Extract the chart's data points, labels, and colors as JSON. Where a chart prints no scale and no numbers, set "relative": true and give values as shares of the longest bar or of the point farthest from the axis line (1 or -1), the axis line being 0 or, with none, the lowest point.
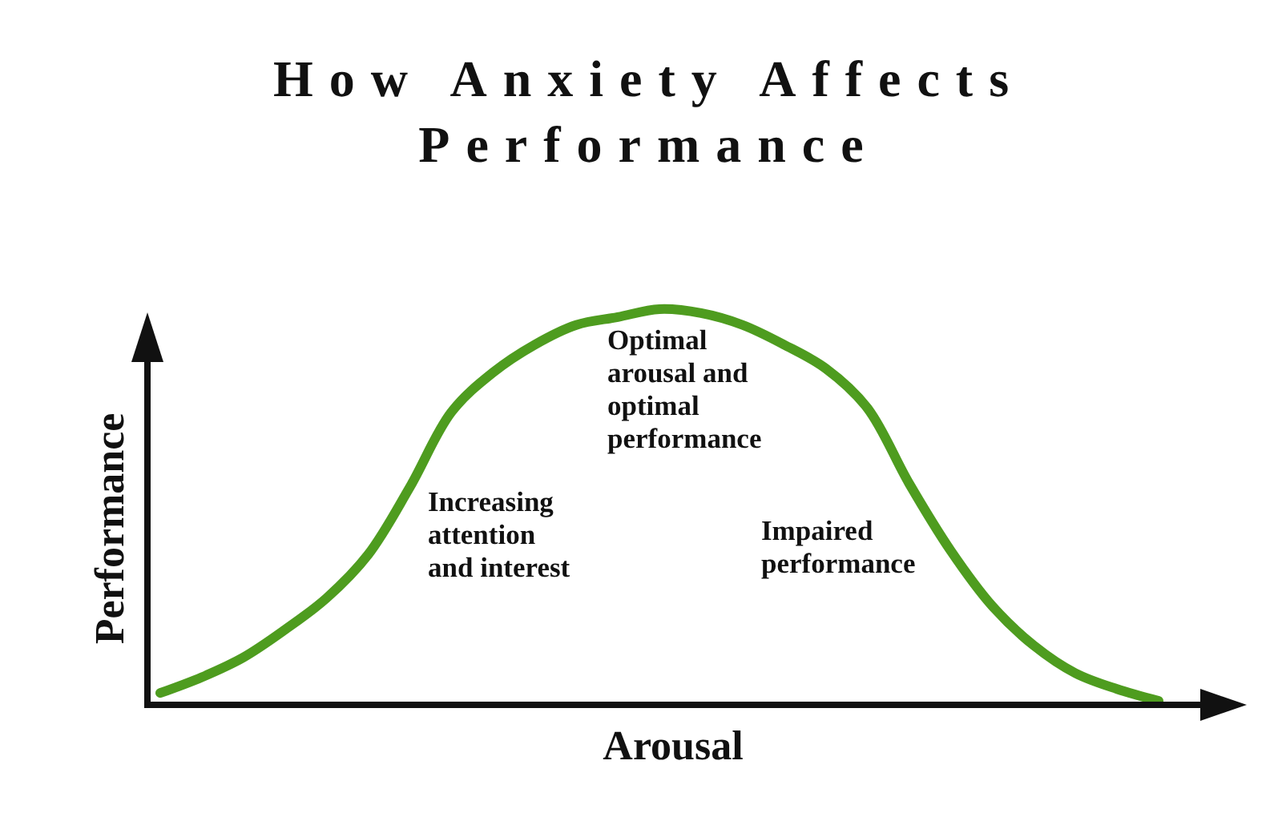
{
  "chart_data": {
    "type": "line",
    "title": "How Anxiety Affects Performance",
    "xlabel": "Arousal",
    "ylabel": "Performance",
    "relative": true,
    "categories": [
      null,
      null,
      null,
      null,
      null,
      null,
      null,
      null,
      null,
      null,
      null,
      null,
      null,
      null,
      null,
      null,
      null,
      null,
      null,
      null,
      null,
      null,
      null,
      null,
      null
    ],
    "values": [
      0.03,
      0.07,
      0.12,
      0.19,
      0.27,
      0.38,
      0.55,
      0.74,
      0.84,
      0.91,
      0.96,
      0.98,
      1.0,
      0.99,
      0.96,
      0.91,
      0.85,
      0.75,
      0.56,
      0.39,
      0.25,
      0.15,
      0.08,
      0.04,
      0.01
    ],
    "color": "#4e9c1f",
    "annotations": [
      "Optimal arousal and optimal performance",
      "Increasing attention and interest",
      "Impaired performance"
    ]
  }
}
